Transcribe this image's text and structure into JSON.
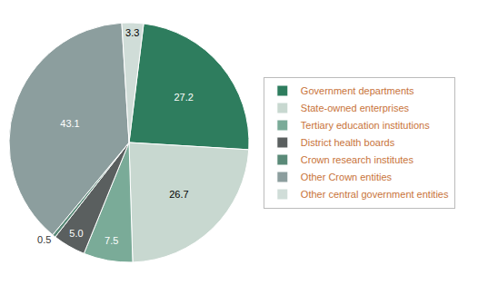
{
  "chart_data": {
    "type": "pie",
    "categories": [
      "Government departments",
      "State-owned enterprises",
      "Tertiary education institutions",
      "District health boards",
      "Crown research institutes",
      "Other Crown entities",
      "Other central government entities"
    ],
    "values": [
      27.2,
      26.7,
      7.5,
      5.0,
      0.5,
      43.1,
      3.3
    ],
    "value_labels": [
      "27.2",
      "26.7",
      "7.5",
      "5.0",
      "0.5",
      "43.1",
      "3.3"
    ],
    "colors": [
      "#2e7d5e",
      "#c8d8d0",
      "#7aab98",
      "#5a5f5f",
      "#5a8a78",
      "#8c9e9e",
      "#d0ddd8"
    ],
    "data_labels": true,
    "legend": "right"
  }
}
